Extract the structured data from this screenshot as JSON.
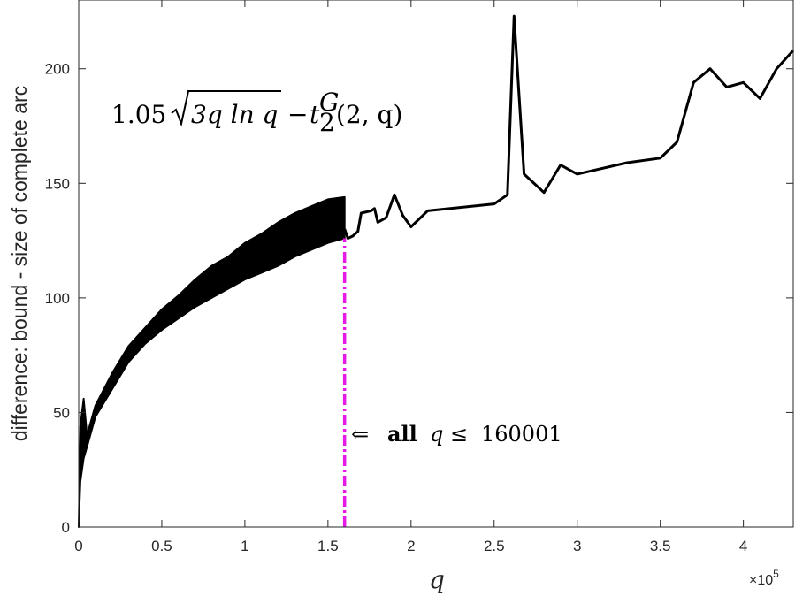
{
  "chart_data": {
    "type": "line",
    "title": "",
    "xlabel": "q",
    "ylabel": "difference: bound - size of complete arc",
    "x_exponent_label": "×10^5",
    "x_exponent_base": "×10",
    "x_exponent_power": "5",
    "xlim": [
      0,
      430000
    ],
    "ylim": [
      0,
      230
    ],
    "x_ticks": [
      0,
      50000,
      100000,
      150000,
      200000,
      250000,
      300000,
      350000,
      400000
    ],
    "x_tick_labels": [
      "0",
      "0.5",
      "1",
      "1.5",
      "2",
      "2.5",
      "3",
      "3.5",
      "4"
    ],
    "y_ticks": [
      0,
      50,
      100,
      150,
      200
    ],
    "y_tick_labels": [
      "0",
      "50",
      "100",
      "150",
      "200"
    ],
    "grid": false,
    "formula_label": {
      "coef": "1.05",
      "radicand": "3q ln q",
      "minus": "−",
      "t": "t",
      "sub": "2",
      "sup": "G",
      "args": "(2, q)"
    },
    "annotation": {
      "arrow": "⇐",
      "bold": "all",
      "var": "q",
      "rel": "≤",
      "value": "160001",
      "x_threshold": 160001
    },
    "series": [
      {
        "color": "#000000",
        "dense_band": {
          "x_start": 0,
          "x_end": 160001,
          "upper": [
            [
              0,
              0
            ],
            [
              1000,
              44
            ],
            [
              3000,
              56
            ],
            [
              5000,
              40
            ],
            [
              10000,
              53
            ],
            [
              20000,
              67
            ],
            [
              30000,
              79
            ],
            [
              40000,
              87
            ],
            [
              50000,
              95
            ],
            [
              60000,
              101
            ],
            [
              70000,
              108
            ],
            [
              80000,
              114
            ],
            [
              90000,
              118
            ],
            [
              100000,
              124
            ],
            [
              110000,
              128
            ],
            [
              120000,
              133
            ],
            [
              130000,
              137
            ],
            [
              140000,
              140
            ],
            [
              150000,
              143
            ],
            [
              160001,
              144
            ]
          ],
          "lower": [
            [
              0,
              0
            ],
            [
              1000,
              20
            ],
            [
              3000,
              30
            ],
            [
              5000,
              35
            ],
            [
              10000,
              48
            ],
            [
              20000,
              60
            ],
            [
              30000,
              72
            ],
            [
              40000,
              80
            ],
            [
              50000,
              86
            ],
            [
              60000,
              91
            ],
            [
              70000,
              96
            ],
            [
              80000,
              100
            ],
            [
              90000,
              104
            ],
            [
              100000,
              108
            ],
            [
              110000,
              111
            ],
            [
              120000,
              114
            ],
            [
              130000,
              118
            ],
            [
              140000,
              121
            ],
            [
              150000,
              124
            ],
            [
              160001,
              126
            ]
          ]
        },
        "points": [
          [
            160001,
            130
          ],
          [
            162000,
            126
          ],
          [
            165000,
            127
          ],
          [
            168000,
            129
          ],
          [
            170000,
            137
          ],
          [
            176000,
            138
          ],
          [
            178000,
            139
          ],
          [
            180000,
            133
          ],
          [
            185000,
            135
          ],
          [
            190000,
            145
          ],
          [
            195000,
            136
          ],
          [
            200000,
            131
          ],
          [
            210000,
            138
          ],
          [
            250000,
            141
          ],
          [
            258000,
            145
          ],
          [
            262000,
            223
          ],
          [
            268000,
            154
          ],
          [
            280000,
            146
          ],
          [
            290000,
            158
          ],
          [
            300000,
            154
          ],
          [
            330000,
            159
          ],
          [
            350000,
            161
          ],
          [
            360000,
            168
          ],
          [
            370000,
            194
          ],
          [
            380000,
            200
          ],
          [
            390000,
            192
          ],
          [
            400000,
            194
          ],
          [
            410000,
            187
          ],
          [
            420000,
            200
          ],
          [
            430000,
            208
          ]
        ]
      }
    ],
    "reference_line": {
      "x": 160001,
      "y_from": 0,
      "y_to": 126,
      "color": "#e619e6",
      "style": "dash-dot"
    }
  }
}
